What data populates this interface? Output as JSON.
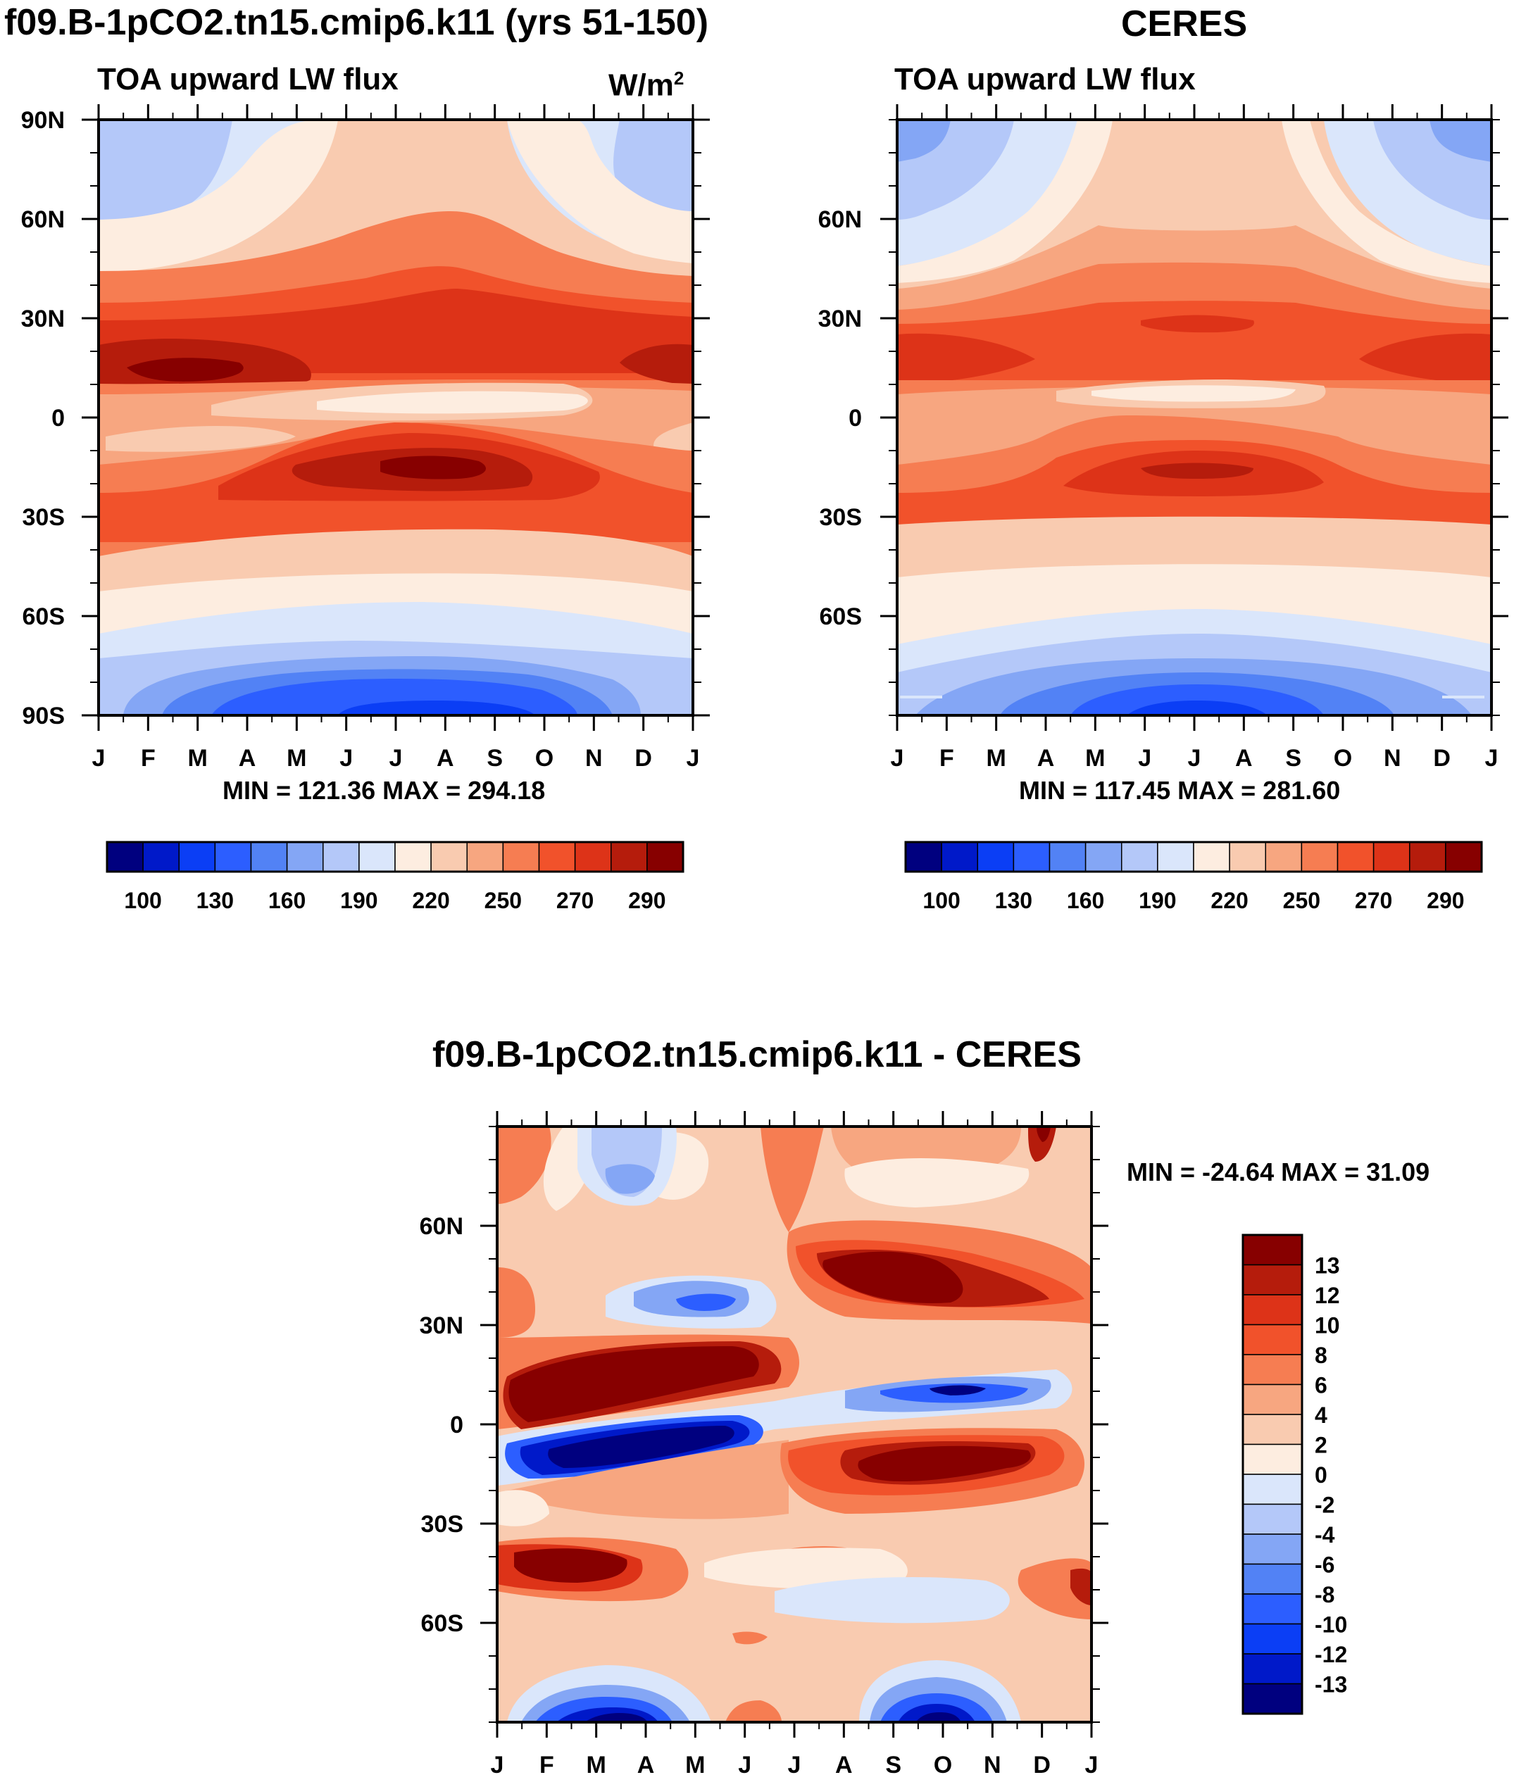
{
  "chart_data": [
    {
      "type": "heatmap",
      "id": "model",
      "title": "f09.B-1pCO2.tn15.cmip6.k11 (yrs 51-150)",
      "subtitle": "TOA upward LW flux",
      "units": "W/m",
      "units_sup": "2",
      "x_ticks": [
        "J",
        "F",
        "M",
        "A",
        "M",
        "J",
        "J",
        "A",
        "S",
        "O",
        "N",
        "D",
        "J"
      ],
      "y_ticks": [
        "90N",
        "60N",
        "30N",
        "0",
        "30S",
        "60S",
        "90S"
      ],
      "ylim": [
        -90,
        90
      ],
      "stats": "MIN = 121.36 MAX = 294.18",
      "colorbar_levels": [
        "100",
        "130",
        "160",
        "190",
        "220",
        "250",
        "270",
        "290"
      ],
      "colorbar_colors": [
        "#00007f",
        "#0019c9",
        "#0b3ef5",
        "#2c5eff",
        "#5282f5",
        "#84a6f5",
        "#b4c8f9",
        "#dae6fb",
        "#fdede0",
        "#f9cbb0",
        "#f7a680",
        "#f67d52",
        "#f1522b",
        "#dd3318",
        "#b51c0c",
        "#870000"
      ]
    },
    {
      "type": "heatmap",
      "id": "ceres",
      "title": "CERES",
      "subtitle": "TOA upward LW flux",
      "x_ticks": [
        "J",
        "F",
        "M",
        "A",
        "M",
        "J",
        "J",
        "A",
        "S",
        "O",
        "N",
        "D",
        "J"
      ],
      "y_ticks": [
        "60N",
        "30N",
        "0",
        "30S",
        "60S"
      ],
      "ylim": [
        -90,
        90
      ],
      "stats": "MIN = 117.45 MAX = 281.60",
      "colorbar_levels": [
        "100",
        "130",
        "160",
        "190",
        "220",
        "250",
        "270",
        "290"
      ],
      "colorbar_colors": [
        "#00007f",
        "#0019c9",
        "#0b3ef5",
        "#2c5eff",
        "#5282f5",
        "#84a6f5",
        "#b4c8f9",
        "#dae6fb",
        "#fdede0",
        "#f9cbb0",
        "#f7a680",
        "#f67d52",
        "#f1522b",
        "#dd3318",
        "#b51c0c",
        "#870000"
      ]
    },
    {
      "type": "heatmap",
      "id": "diff",
      "title": "f09.B-1pCO2.tn15.cmip6.k11 - CERES",
      "x_ticks": [
        "J",
        "F",
        "M",
        "A",
        "M",
        "J",
        "J",
        "A",
        "S",
        "O",
        "N",
        "D",
        "J"
      ],
      "y_ticks": [
        "60N",
        "30N",
        "0",
        "30S",
        "60S"
      ],
      "ylim": [
        -90,
        90
      ],
      "stats": "MIN = -24.64 MAX =  31.09",
      "colorbar_levels": [
        "13",
        "12",
        "10",
        "8",
        "6",
        "4",
        "2",
        "0",
        "-2",
        "-4",
        "-6",
        "-8",
        "-10",
        "-12",
        "-13"
      ],
      "colorbar_colors": [
        "#870000",
        "#b51c0c",
        "#dd3318",
        "#f1522b",
        "#f67d52",
        "#f7a680",
        "#f9cbb0",
        "#fdede0",
        "#dae6fb",
        "#b4c8f9",
        "#84a6f5",
        "#5282f5",
        "#2c5eff",
        "#0b3ef5",
        "#0019c9",
        "#00007f"
      ]
    }
  ]
}
